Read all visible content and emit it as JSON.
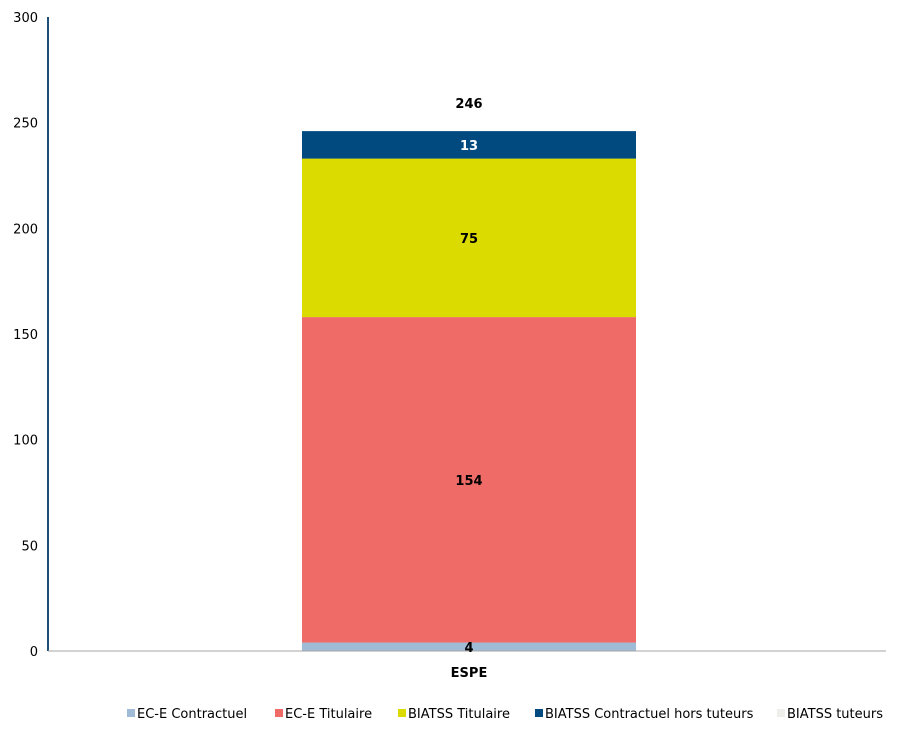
{
  "chart_data": {
    "type": "bar",
    "stacked": true,
    "categories": [
      "ESPE"
    ],
    "total_label": "246",
    "ylim": [
      0,
      300
    ],
    "y_ticks": [
      0,
      50,
      100,
      150,
      200,
      250,
      300
    ],
    "grid": false,
    "legend_position": "bottom",
    "series": [
      {
        "name": "EC-E Contractuel",
        "values": [
          4
        ],
        "color": "#9fbbd6",
        "label_color": "#000000"
      },
      {
        "name": "EC-E Titulaire",
        "values": [
          154
        ],
        "color": "#ef6b67",
        "label_color": "#000000"
      },
      {
        "name": "BIATSS Titulaire",
        "values": [
          75
        ],
        "color": "#dbdb00",
        "label_color": "#000000"
      },
      {
        "name": "BIATSS Contractuel hors tuteurs",
        "values": [
          13
        ],
        "color": "#004a80",
        "label_color": "#ffffff"
      },
      {
        "name": "BIATSS tuteurs",
        "values": [
          0
        ],
        "color": "#eeeeea",
        "label_color": "#000000"
      }
    ]
  }
}
